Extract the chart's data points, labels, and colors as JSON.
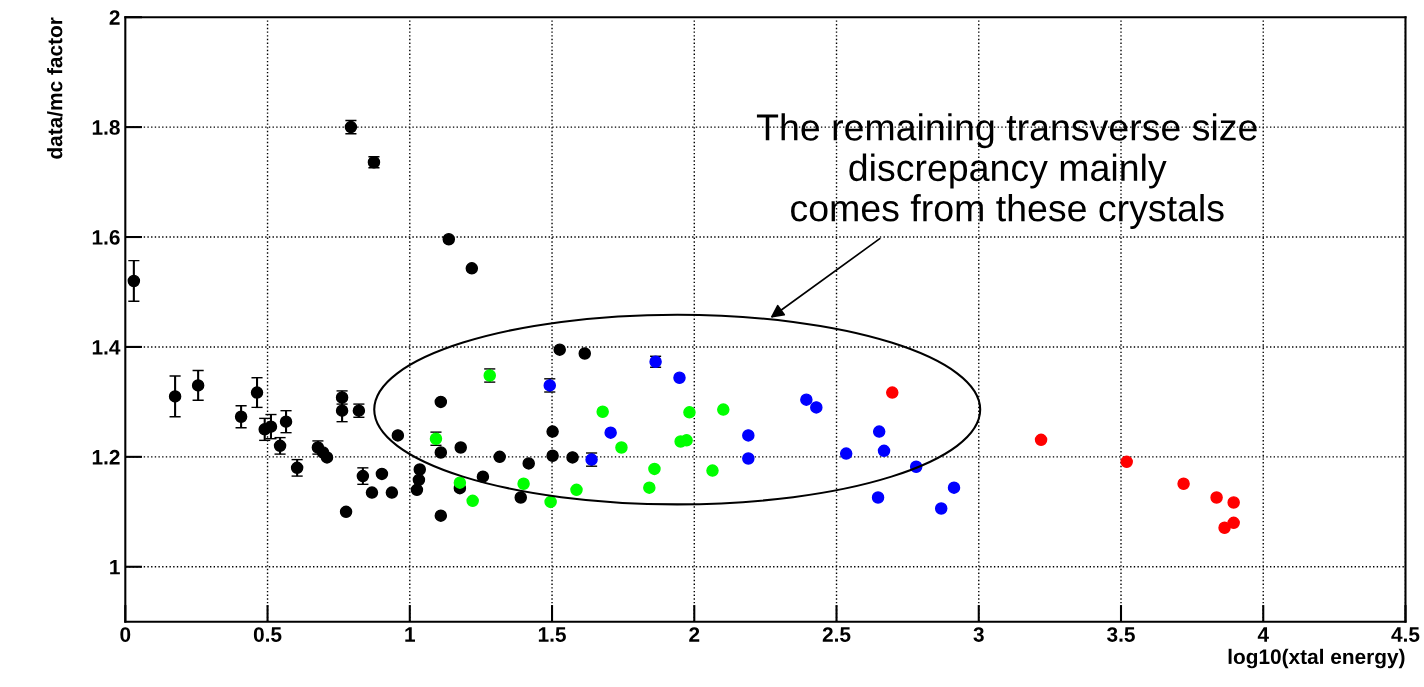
{
  "chart_data": {
    "type": "scatter",
    "xlabel": "log10(xtal energy)",
    "ylabel": "data/mc factor",
    "xlim": [
      0,
      4.5
    ],
    "ylim": [
      0.9,
      2
    ],
    "xticks": [
      0,
      0.5,
      1,
      1.5,
      2,
      2.5,
      3,
      3.5,
      4,
      4.5
    ],
    "yticks": [
      1,
      1.2,
      1.4,
      1.6,
      1.8,
      2
    ],
    "grid": true,
    "marker": "circle",
    "annotations": [
      "The remaining transverse size\ndiscrepancy mainly\ncomes from these crystals"
    ],
    "series": [
      {
        "color": "#000000",
        "x": [
          0.03,
          0.175,
          0.256,
          0.407,
          0.463,
          0.49,
          0.512,
          0.544,
          0.565,
          0.604,
          0.677,
          0.695,
          0.709,
          0.762,
          0.762,
          0.776,
          0.793,
          0.821,
          0.835,
          0.867,
          0.902,
          0.874,
          0.937,
          0.958,
          1.035,
          1.032,
          1.025,
          1.109,
          1.109,
          1.109,
          1.137,
          1.179,
          1.176,
          1.218,
          1.257,
          1.316,
          1.39,
          1.418,
          1.502,
          1.502,
          1.527,
          1.572,
          1.615
        ],
        "values": [
          1.52,
          1.31,
          1.33,
          1.273,
          1.317,
          1.25,
          1.255,
          1.22,
          1.264,
          1.18,
          1.217,
          1.208,
          1.199,
          1.308,
          1.284,
          1.1,
          1.8,
          1.284,
          1.165,
          1.135,
          1.169,
          1.736,
          1.135,
          1.239,
          1.177,
          1.158,
          1.14,
          1.093,
          1.3,
          1.208,
          1.596,
          1.217,
          1.143,
          1.543,
          1.164,
          1.2,
          1.126,
          1.188,
          1.246,
          1.202,
          1.395,
          1.199,
          1.388
        ],
        "errors": [
          0.037,
          0.037,
          0.027,
          0.02,
          0.027,
          0.02,
          0.022,
          0.015,
          0.02,
          0.015,
          0.012,
          null,
          null,
          0.012,
          0.02,
          null,
          0.012,
          0.012,
          0.015,
          null,
          null,
          0.01,
          null,
          null,
          null,
          null,
          null,
          null,
          null,
          null,
          null,
          null,
          null,
          null,
          null,
          null,
          null,
          null,
          null,
          null,
          null,
          null,
          null
        ]
      },
      {
        "color": "#00ff00",
        "x": [
          1.092,
          1.176,
          1.221,
          1.281,
          1.4,
          1.495,
          1.586,
          1.678,
          1.744,
          1.842,
          1.86,
          1.952,
          1.973,
          1.983,
          2.064,
          2.102
        ],
        "values": [
          1.233,
          1.153,
          1.12,
          1.348,
          1.151,
          1.118,
          1.14,
          1.282,
          1.217,
          1.144,
          1.178,
          1.228,
          1.23,
          1.281,
          1.175,
          1.286
        ],
        "errors": [
          0.012,
          null,
          null,
          0.012,
          null,
          null,
          null,
          null,
          null,
          null,
          null,
          null,
          null,
          null,
          null,
          null
        ]
      },
      {
        "color": "#0000ff",
        "x": [
          1.492,
          1.639,
          1.706,
          1.864,
          1.948,
          2.19,
          2.19,
          2.394,
          2.429,
          2.534,
          2.646,
          2.65,
          2.667,
          2.78,
          2.868,
          2.913
        ],
        "values": [
          1.33,
          1.195,
          1.244,
          1.373,
          1.344,
          1.239,
          1.197,
          1.304,
          1.29,
          1.206,
          1.126,
          1.246,
          1.211,
          1.182,
          1.106,
          1.144
        ],
        "errors": [
          0.012,
          0.012,
          null,
          0.01,
          null,
          null,
          null,
          null,
          null,
          null,
          null,
          null,
          null,
          null,
          null,
          null
        ]
      },
      {
        "color": "#ff0000",
        "x": [
          2.696,
          3.219,
          3.52,
          3.72,
          3.836,
          3.896,
          3.864,
          3.896
        ],
        "values": [
          1.317,
          1.231,
          1.191,
          1.151,
          1.126,
          1.117,
          1.071,
          1.08
        ]
      }
    ]
  }
}
